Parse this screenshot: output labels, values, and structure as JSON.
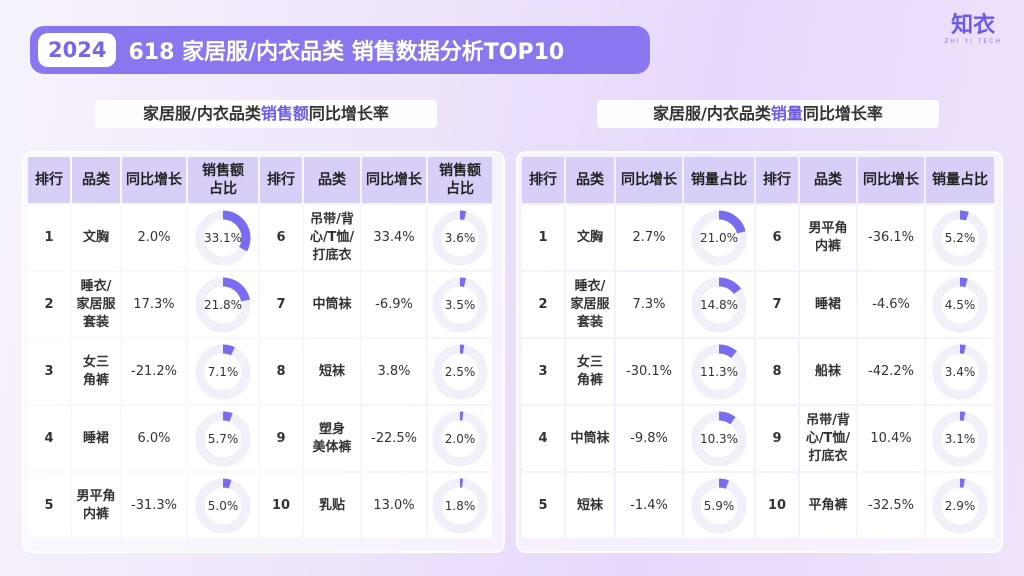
{
  "header": {
    "year": "2024",
    "title": "618 家居服/内衣品类 销售数据分析TOP10",
    "logo": "知衣",
    "logo_sub": "ZHI YI TECH"
  },
  "colors": {
    "accent": "#6a5be8",
    "donut_fill": "#7a6cf0",
    "donut_track": "#f1eff8",
    "header_cell": "#d9cef8"
  },
  "chart_data": [
    {
      "type": "table",
      "title_parts": {
        "before": "家居服/内衣品类",
        "highlight": "销售额",
        "after": "同比增长率"
      },
      "headers": [
        "排行",
        "品类",
        "同比增长",
        "销售额\n占比",
        "排行",
        "品类",
        "同比增长",
        "销售额\n占比"
      ],
      "rows": [
        {
          "left": {
            "rank": "1",
            "category": "文胸",
            "growth": "2.0%",
            "share": 33.1,
            "share_label": "33.1%"
          },
          "right": {
            "rank": "6",
            "category": "吊带/背\n心/T恤/\n打底衣",
            "growth": "33.4%",
            "share": 3.6,
            "share_label": "3.6%"
          }
        },
        {
          "left": {
            "rank": "2",
            "category": "睡衣/\n家居服\n套装",
            "growth": "17.3%",
            "share": 21.8,
            "share_label": "21.8%"
          },
          "right": {
            "rank": "7",
            "category": "中筒袜",
            "growth": "-6.9%",
            "share": 3.5,
            "share_label": "3.5%"
          }
        },
        {
          "left": {
            "rank": "3",
            "category": "女三\n角裤",
            "growth": "-21.2%",
            "share": 7.1,
            "share_label": "7.1%"
          },
          "right": {
            "rank": "8",
            "category": "短袜",
            "growth": "3.8%",
            "share": 2.5,
            "share_label": "2.5%"
          }
        },
        {
          "left": {
            "rank": "4",
            "category": "睡裙",
            "growth": "6.0%",
            "share": 5.7,
            "share_label": "5.7%"
          },
          "right": {
            "rank": "9",
            "category": "塑身\n美体裤",
            "growth": "-22.5%",
            "share": 2.0,
            "share_label": "2.0%"
          }
        },
        {
          "left": {
            "rank": "5",
            "category": "男平角\n内裤",
            "growth": "-31.3%",
            "share": 5.0,
            "share_label": "5.0%"
          },
          "right": {
            "rank": "10",
            "category": "乳贴",
            "growth": "13.0%",
            "share": 1.8,
            "share_label": "1.8%"
          }
        }
      ]
    },
    {
      "type": "table",
      "title_parts": {
        "before": "家居服/内衣品类",
        "highlight": "销量",
        "after": "同比增长率"
      },
      "headers": [
        "排行",
        "品类",
        "同比增长",
        "销量占比",
        "排行",
        "品类",
        "同比增长",
        "销量占比"
      ],
      "rows": [
        {
          "left": {
            "rank": "1",
            "category": "文胸",
            "growth": "2.7%",
            "share": 21.0,
            "share_label": "21.0%"
          },
          "right": {
            "rank": "6",
            "category": "男平角\n内裤",
            "growth": "-36.1%",
            "share": 5.2,
            "share_label": "5.2%"
          }
        },
        {
          "left": {
            "rank": "2",
            "category": "睡衣/\n家居服\n套装",
            "growth": "7.3%",
            "share": 14.8,
            "share_label": "14.8%"
          },
          "right": {
            "rank": "7",
            "category": "睡裙",
            "growth": "-4.6%",
            "share": 4.5,
            "share_label": "4.5%"
          }
        },
        {
          "left": {
            "rank": "3",
            "category": "女三\n角裤",
            "growth": "-30.1%",
            "share": 11.3,
            "share_label": "11.3%"
          },
          "right": {
            "rank": "8",
            "category": "船袜",
            "growth": "-42.2%",
            "share": 3.4,
            "share_label": "3.4%"
          }
        },
        {
          "left": {
            "rank": "4",
            "category": "中筒袜",
            "growth": "-9.8%",
            "share": 10.3,
            "share_label": "10.3%"
          },
          "right": {
            "rank": "9",
            "category": "吊带/背\n心/T恤/\n打底衣",
            "growth": "10.4%",
            "share": 3.1,
            "share_label": "3.1%"
          }
        },
        {
          "left": {
            "rank": "5",
            "category": "短袜",
            "growth": "-1.4%",
            "share": 5.9,
            "share_label": "5.9%"
          },
          "right": {
            "rank": "10",
            "category": "平角裤",
            "growth": "-32.5%",
            "share": 2.9,
            "share_label": "2.9%"
          }
        }
      ]
    }
  ]
}
